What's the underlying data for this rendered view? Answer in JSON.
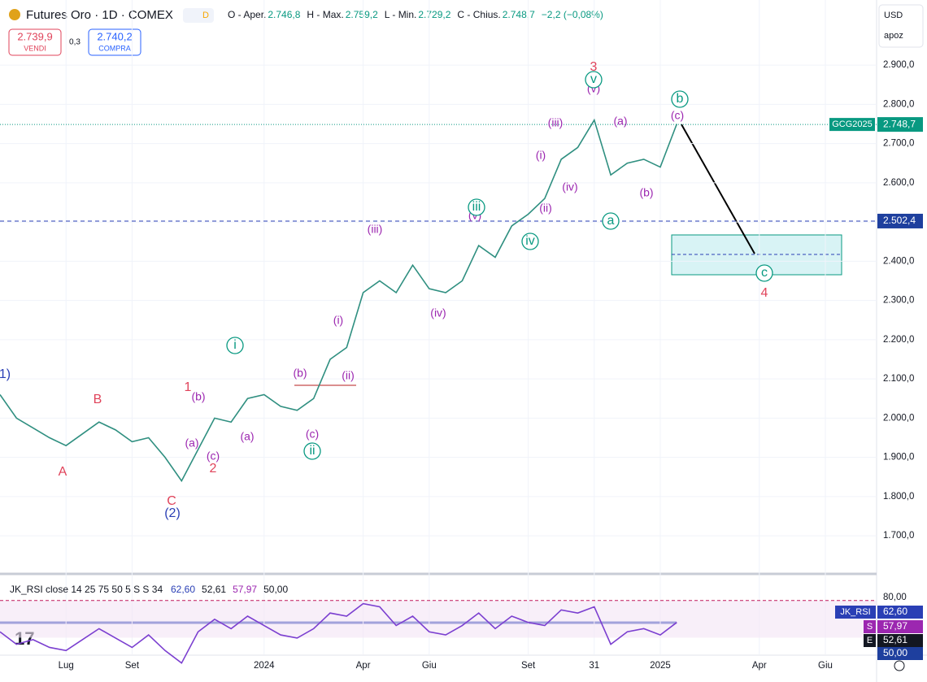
{
  "header": {
    "title": "Futures Oro · 1D · COMEX",
    "badge": "D",
    "ohlc": [
      "O - Aper.",
      "2.746,8",
      "H - Max.",
      "2.759,2",
      "L - Min.",
      "2.729,2",
      "C - Chius.",
      "2.748,7",
      "−2,2 (−0,08%)"
    ],
    "sell_price": "2.739,9",
    "sell": "VENDI",
    "spread": "0,3",
    "buy_price": "2.740,2",
    "buy": "COMPRA",
    "currency": "USD",
    "scale": "apoz"
  },
  "chart_data": [
    {
      "type": "line",
      "name": "price",
      "color": "#2f8f80",
      "categories": [
        null,
        null,
        null,
        null,
        "Lug",
        null,
        null,
        null,
        "Set",
        null,
        null,
        null,
        null,
        null,
        null,
        null,
        "2024",
        null,
        null,
        null,
        null,
        null,
        "Apr",
        null,
        null,
        null,
        "Giu",
        null,
        null,
        null,
        null,
        null,
        "Set",
        null,
        null,
        null,
        "31",
        null,
        null,
        null,
        "2025",
        null,
        null,
        null,
        null,
        null,
        "Apr",
        null,
        null,
        null,
        "Giu"
      ],
      "values": [
        2060,
        2000,
        1975,
        1950,
        1930,
        1960,
        1990,
        1970,
        1940,
        1950,
        1900,
        1840,
        1920,
        2000,
        1990,
        2050,
        2060,
        2030,
        2020,
        2050,
        2150,
        2180,
        2320,
        2350,
        2320,
        2390,
        2330,
        2320,
        2350,
        2440,
        2410,
        2490,
        2520,
        2560,
        2660,
        2690,
        2760,
        2620,
        2650,
        2660,
        2640,
        2750,
        null,
        null,
        null,
        null,
        null,
        null,
        null,
        null,
        null
      ],
      "ylim": [
        1605,
        3066
      ],
      "yticks": [
        {
          "value": 1700,
          "label": "1.700,0"
        },
        {
          "value": 1800,
          "label": "1.800,0"
        },
        {
          "value": 1900,
          "label": "1.900,0"
        },
        {
          "value": 2000,
          "label": "2.000,0"
        },
        {
          "value": 2100,
          "label": "2.100,0"
        },
        {
          "value": 2200,
          "label": "2.200,0"
        },
        {
          "value": 2300,
          "label": "2.300,0"
        },
        {
          "value": 2400,
          "label": "2.400,0"
        },
        {
          "value": 2500,
          "label": "2.500,0"
        },
        {
          "value": 2600,
          "label": "2.600,0"
        },
        {
          "value": 2700,
          "label": "2.700,0"
        },
        {
          "value": 2800,
          "label": "2.800,0"
        },
        {
          "value": 2900,
          "label": "2.900,0"
        }
      ],
      "grid": true,
      "last_price": {
        "value": 2748.7,
        "label": "2.748,7",
        "symbol": "GCG2025"
      },
      "level": {
        "value": 2502.4,
        "label": "2.502,4"
      },
      "annotations": [
        {
          "text": "3",
          "color": "#e0435a"
        },
        {
          "text": "1",
          "color": "#e0435a"
        },
        {
          "text": "B",
          "color": "#e0435a"
        },
        {
          "text": "A",
          "color": "#e0435a"
        },
        {
          "text": "2",
          "color": "#e0435a"
        },
        {
          "text": "C",
          "color": "#e0435a"
        },
        {
          "text": "4",
          "color": "#e0435a"
        },
        {
          "text": "1)",
          "color": "#2a3fb5"
        },
        {
          "text": "(2)",
          "color": "#2a3fb5"
        },
        {
          "text": "(b)",
          "color": "#9c27b0"
        },
        {
          "text": "(a)",
          "color": "#9c27b0"
        },
        {
          "text": "(c)",
          "color": "#9c27b0"
        },
        {
          "text": "(a)",
          "color": "#9c27b0"
        },
        {
          "text": "(b)",
          "color": "#9c27b0"
        },
        {
          "text": "(c)",
          "color": "#9c27b0"
        },
        {
          "text": "(ii)",
          "color": "#9c27b0"
        },
        {
          "text": "(i)",
          "color": "#9c27b0"
        },
        {
          "text": "(iii)",
          "color": "#9c27b0"
        },
        {
          "text": "(iv)",
          "color": "#9c27b0"
        },
        {
          "text": "(v)",
          "color": "#9c27b0"
        },
        {
          "text": "(ii)",
          "color": "#9c27b0"
        },
        {
          "text": "(i)",
          "color": "#9c27b0"
        },
        {
          "text": "(iii)",
          "color": "#9c27b0"
        },
        {
          "text": "(iv)",
          "color": "#9c27b0"
        },
        {
          "text": "(v)",
          "color": "#9c27b0"
        },
        {
          "text": "(a)",
          "color": "#9c27b0"
        },
        {
          "text": "(b)",
          "color": "#9c27b0"
        },
        {
          "text": "(c)",
          "color": "#9c27b0"
        },
        {
          "text": "i",
          "color": "#089981"
        },
        {
          "text": "ii",
          "color": "#089981"
        },
        {
          "text": "iii",
          "color": "#089981"
        },
        {
          "text": "iv",
          "color": "#089981"
        },
        {
          "text": "v",
          "color": "#089981"
        },
        {
          "text": "a",
          "color": "#089981"
        },
        {
          "text": "b",
          "color": "#089981"
        },
        {
          "text": "c",
          "color": "#089981"
        }
      ]
    },
    {
      "type": "line",
      "name": "rsi",
      "title": "JK_RSI close 14 25 75 50 5 S S 34",
      "readings": [
        "62,60",
        "52,61",
        "57,97",
        "50,00"
      ],
      "color": "#7b3fd0",
      "values": [
        60,
        52,
        55,
        50,
        48,
        55,
        62,
        56,
        50,
        58,
        48,
        40,
        60,
        68,
        62,
        70,
        64,
        58,
        56,
        62,
        72,
        70,
        78,
        76,
        64,
        70,
        60,
        58,
        64,
        72,
        62,
        70,
        66,
        64,
        74,
        72,
        76,
        52,
        60,
        62,
        58,
        66
      ],
      "ylim": [
        44,
        83
      ],
      "yticks": [
        {
          "value": 80,
          "label": "80,00"
        }
      ],
      "tags": [
        {
          "name": "JK_RSI",
          "label": "62,60"
        },
        {
          "name": "S",
          "label": "57,97"
        },
        {
          "name": "E",
          "label": "52,61"
        },
        {
          "name": "",
          "label": "50,00"
        }
      ]
    }
  ]
}
